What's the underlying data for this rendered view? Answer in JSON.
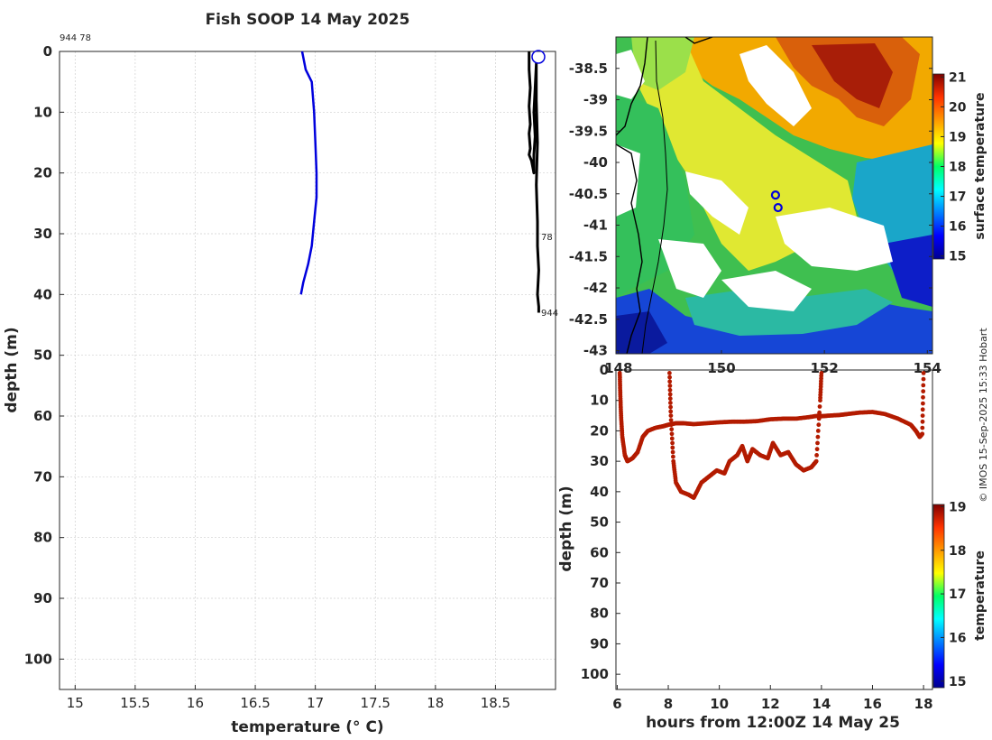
{
  "title": "Fish SOOP 14 May 2025",
  "credit": "© IMOS 15-Sep-2025 15:33 Hobart",
  "chart_data": [
    {
      "name": "temperature-profile",
      "type": "line",
      "xlabel": "temperature (° C)",
      "ylabel": "depth (m)",
      "xlim": [
        14.87,
        19.0
      ],
      "ylim": [
        0,
        105
      ],
      "y_reversed": true,
      "xticks": [
        "15",
        "15.5",
        "16",
        "16.5",
        "17",
        "17.5",
        "18",
        "18.5"
      ],
      "xtick_values": [
        15,
        15.5,
        16,
        16.5,
        17,
        17.5,
        18,
        18.5
      ],
      "yticks": [
        "0",
        "10",
        "20",
        "30",
        "40",
        "50",
        "60",
        "70",
        "80",
        "90",
        "100"
      ],
      "ytick_values": [
        0,
        10,
        20,
        30,
        40,
        50,
        60,
        70,
        80,
        90,
        100
      ],
      "grid": true,
      "top_label": "944 78",
      "series": [
        {
          "name": "profile",
          "color": "#0000dd",
          "x": [
            16.89,
            16.92,
            16.97,
            16.99,
            17.0,
            17.01,
            17.01,
            16.99,
            16.97,
            16.94,
            16.9,
            16.88
          ],
          "y": [
            0,
            3,
            5,
            10,
            15,
            20,
            24,
            28,
            32,
            35,
            38,
            40
          ]
        },
        {
          "name": "profile-bundle",
          "color": "#000000",
          "x": [
            18.78,
            18.78,
            18.79,
            18.78,
            18.79,
            18.78,
            18.79,
            18.78,
            18.8,
            18.81,
            18.82,
            18.82,
            18.83,
            18.82,
            18.83,
            18.84,
            18.84,
            18.85,
            18.84,
            18.85,
            18.85,
            18.86,
            18.85,
            18.86,
            18.86
          ],
          "y": [
            0,
            3,
            6,
            9,
            12,
            13.5,
            16,
            17,
            18,
            19,
            20,
            17,
            14,
            10,
            6,
            2,
            8,
            15,
            22,
            28,
            32,
            36,
            40,
            42,
            43
          ]
        }
      ],
      "annotations": [
        {
          "text": "78",
          "x": 18.87,
          "y": 31
        },
        {
          "text": "944",
          "x": 18.87,
          "y": 43
        }
      ]
    },
    {
      "name": "sst-map",
      "type": "heatmap",
      "ylabel": "",
      "yticks": [
        "-38.5",
        "-39",
        "-39.5",
        "-40",
        "-40.5",
        "-41",
        "-41.5",
        "-42",
        "-42.5",
        "-43"
      ],
      "ytick_values": [
        -38.5,
        -39,
        -39.5,
        -40,
        -40.5,
        -41,
        -41.5,
        -42,
        -42.5,
        -43
      ],
      "ylim": [
        -43.05,
        -38.0
      ],
      "xticks": [
        "148",
        "150",
        "152",
        "154"
      ],
      "xtick_values": [
        148,
        150,
        152,
        154
      ],
      "xlim": [
        147.95,
        154.1
      ],
      "colorbar_label": "surface temperature",
      "colorbar_ticks": [
        "15",
        "16",
        "17",
        "18",
        "19",
        "20",
        "21"
      ],
      "colorbar_tick_values": [
        15,
        16,
        17,
        18,
        19,
        20,
        21
      ],
      "colorbar_range": [
        14.9,
        21.1
      ],
      "markers": [
        {
          "lon": 151.05,
          "lat": -40.52
        },
        {
          "lon": 151.1,
          "lat": -40.72
        }
      ]
    },
    {
      "name": "depth-time",
      "type": "scatter",
      "xlabel": "hours from 12:00Z 14 May 25",
      "ylabel": "depth (m)",
      "xlim": [
        5.95,
        18.35
      ],
      "ylim": [
        0,
        105
      ],
      "y_reversed": true,
      "xticks": [
        "6",
        "8",
        "10",
        "12",
        "14",
        "16",
        "18"
      ],
      "xtick_values": [
        6,
        8,
        10,
        12,
        14,
        16,
        18
      ],
      "yticks": [
        "0",
        "10",
        "20",
        "30",
        "40",
        "50",
        "60",
        "70",
        "80",
        "90",
        "100"
      ],
      "ytick_values": [
        0,
        10,
        20,
        30,
        40,
        50,
        60,
        70,
        80,
        90,
        100
      ],
      "colorbar_label": "temperature",
      "colorbar_ticks": [
        "15",
        "16",
        "17",
        "18",
        "19"
      ],
      "colorbar_tick_values": [
        15,
        16,
        17,
        18,
        19
      ],
      "colorbar_range": [
        14.85,
        19.05
      ],
      "series": [
        {
          "name": "track-shallow",
          "color": "#b31b00",
          "x": [
            6.1,
            6.12,
            6.15,
            6.2,
            6.3,
            6.4,
            6.6,
            6.8,
            7.0,
            7.2,
            7.5,
            7.8,
            8.0,
            8.3,
            8.6,
            9.0,
            9.5,
            10.0,
            10.5,
            11.0,
            11.5,
            12.0,
            12.5,
            13.0,
            13.5,
            13.9,
            14.0,
            14.3,
            14.7,
            15.0,
            15.5,
            16.0,
            16.5,
            17.0,
            17.5,
            17.7,
            17.85,
            17.95,
            18.0
          ],
          "y": [
            1,
            8,
            15,
            22,
            28,
            30,
            29,
            27,
            22,
            20,
            19,
            18.5,
            18,
            17.5,
            17.5,
            17.8,
            17.5,
            17.2,
            17,
            17,
            16.8,
            16.2,
            16,
            16,
            15.5,
            15,
            15.2,
            15,
            14.8,
            14.5,
            14,
            13.8,
            14.5,
            16,
            18,
            20,
            22,
            21,
            1
          ]
        },
        {
          "name": "track-deep",
          "color": "#b31b00",
          "x": [
            8.05,
            8.1,
            8.2,
            8.3,
            8.5,
            8.8,
            9.0,
            9.3,
            9.6,
            9.9,
            10.2,
            10.4,
            10.7,
            10.9,
            11.1,
            11.3,
            11.6,
            11.9,
            12.1,
            12.4,
            12.7,
            13.0,
            13.3,
            13.6,
            13.8,
            13.95,
            14.0
          ],
          "y": [
            1,
            15,
            30,
            37,
            40,
            41,
            42,
            37,
            35,
            33,
            34,
            30,
            28,
            25,
            30,
            26,
            28,
            29,
            24,
            28,
            27,
            31,
            33,
            32,
            30,
            10,
            1
          ]
        }
      ]
    }
  ]
}
